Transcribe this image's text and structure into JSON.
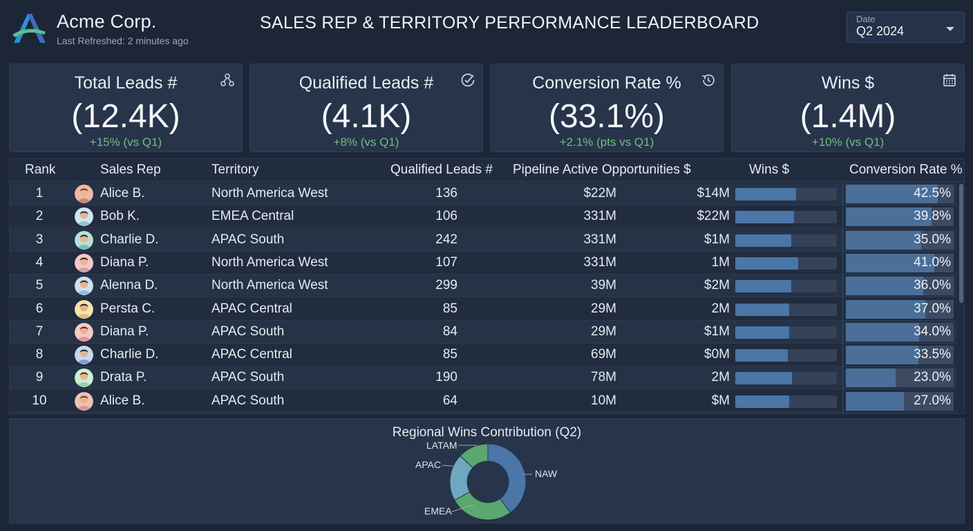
{
  "header": {
    "company": "Acme Corp.",
    "refreshed": "Last Refreshed: 2 minutes ago",
    "title": "SALES REP & TERRITORY PERFORMANCE LEADERBOARD",
    "date_filter": {
      "label": "Date",
      "value": "Q2 2024"
    }
  },
  "kpis": [
    {
      "title": "Total Leads #",
      "value": "(12.4K)",
      "delta": "+15% (vs Q1)",
      "icon": "network-icon"
    },
    {
      "title": "Qualified Leads #",
      "value": "(4.1K)",
      "delta": "+8% (vs Q1)",
      "icon": "check-circle-icon"
    },
    {
      "title": "Conversion Rate %",
      "value": "(33.1%)",
      "delta": "+2.1% (pts vs Q1)",
      "icon": "history-icon"
    },
    {
      "title": "Wins $",
      "value": "(1.4M)",
      "delta": "+10% (vs Q1)",
      "icon": "calendar-icon"
    }
  ],
  "table": {
    "columns": [
      "Rank",
      "Sales Rep",
      "Territory",
      "Qualified Leads #",
      "Pipeline Active Opportunities $",
      "Wins $",
      "Conversion Rate %"
    ],
    "rows": [
      {
        "rank": "1",
        "rep": "Alice B.",
        "territory": "North America West",
        "leads": "136",
        "pipeline": "$22M",
        "wins": "$14M",
        "win_bar": 0.6,
        "conv": "42.5%",
        "conv_frac": 0.425
      },
      {
        "rank": "2",
        "rep": "Bob K.",
        "territory": "EMEA Central",
        "leads": "106",
        "pipeline": "331M",
        "wins": "$22M",
        "win_bar": 0.58,
        "conv": "39.8%",
        "conv_frac": 0.398
      },
      {
        "rank": "3",
        "rep": "Charlie D.",
        "territory": "APAC South",
        "leads": "242",
        "pipeline": "331M",
        "wins": "$1M",
        "win_bar": 0.55,
        "conv": "35.0%",
        "conv_frac": 0.35
      },
      {
        "rank": "4",
        "rep": "Diana P.",
        "territory": "North America West",
        "leads": "107",
        "pipeline": "331M",
        "wins": "1M",
        "win_bar": 0.62,
        "conv": "41.0%",
        "conv_frac": 0.41
      },
      {
        "rank": "5",
        "rep": "Alenna D.",
        "territory": "North America West",
        "leads": "299",
        "pipeline": "39M",
        "wins": "$2M",
        "win_bar": 0.55,
        "conv": "36.0%",
        "conv_frac": 0.36
      },
      {
        "rank": "6",
        "rep": "Persta C.",
        "territory": "APAC Central",
        "leads": "85",
        "pipeline": "29M",
        "wins": "2M",
        "win_bar": 0.53,
        "conv": "37.0%",
        "conv_frac": 0.37
      },
      {
        "rank": "7",
        "rep": "Diana P.",
        "territory": "APAC South",
        "leads": "84",
        "pipeline": "29M",
        "wins": "$1M",
        "win_bar": 0.53,
        "conv": "34.0%",
        "conv_frac": 0.34
      },
      {
        "rank": "8",
        "rep": "Charlie D.",
        "territory": "APAC Central",
        "leads": "85",
        "pipeline": "69M",
        "wins": "$0M",
        "win_bar": 0.52,
        "conv": "33.5%",
        "conv_frac": 0.335
      },
      {
        "rank": "9",
        "rep": "Drata P.",
        "territory": "APAC South",
        "leads": "190",
        "pipeline": "78M",
        "wins": "2M",
        "win_bar": 0.56,
        "conv": "23.0%",
        "conv_frac": 0.23
      },
      {
        "rank": "10",
        "rep": "Alice B.",
        "territory": "APAC South",
        "leads": "64",
        "pipeline": "10M",
        "wins": "$M",
        "win_bar": 0.53,
        "conv": "27.0%",
        "conv_frac": 0.27
      }
    ]
  },
  "chart_data": {
    "type": "pie",
    "title": "Regional Wins Contribution (Q2)",
    "categories": [
      "NAW",
      "EMEA",
      "APAC",
      "LATAM"
    ],
    "values": [
      40,
      27,
      20,
      13
    ],
    "colors": [
      "#4a76a8",
      "#5aa86e",
      "#6fa7c0",
      "#5aa86e"
    ]
  }
}
